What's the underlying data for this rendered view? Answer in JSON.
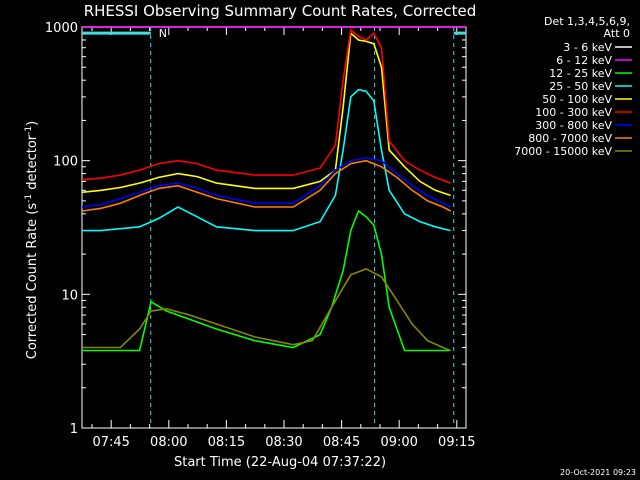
{
  "chart_data": {
    "type": "line",
    "title": "RHESSI Observing Summary Count Rates, Corrected",
    "ylabel": "Corrected Count Rate (s⁻¹ detector⁻¹)",
    "xlabel": "Start Time (22-Aug-04 07:37:22)",
    "x_unit": "minutes since 07:37:22",
    "xlim": [
      0,
      100
    ],
    "ylim": [
      1,
      1000
    ],
    "y_scale": "log",
    "y_ticks": [
      {
        "value": 1,
        "label": "1"
      },
      {
        "value": 10,
        "label": "10"
      },
      {
        "value": 100,
        "label": "100"
      },
      {
        "value": 1000,
        "label": "1000"
      }
    ],
    "x_ticks": [
      {
        "value": 7.6,
        "label": "07:45"
      },
      {
        "value": 22.6,
        "label": "08:00"
      },
      {
        "value": 37.6,
        "label": "08:15"
      },
      {
        "value": 52.6,
        "label": "08:30"
      },
      {
        "value": 67.6,
        "label": "08:45"
      },
      {
        "value": 82.6,
        "label": "09:00"
      },
      {
        "value": 97.6,
        "label": "09:15"
      }
    ],
    "legend_header": [
      "Det 1,3,4,5,6,9,",
      "Att 0"
    ],
    "legend_position": "right",
    "night_markers": [
      17.9,
      76.2,
      96.8
    ],
    "night_marker_label": "N",
    "attenuator_flag_value": 900,
    "series": [
      {
        "name": "3 - 6 keV",
        "color": "#ffffff",
        "x": [
          0,
          20,
          35,
          50,
          62,
          67,
          70,
          73,
          76,
          80,
          85,
          100
        ],
        "y": [
          1000,
          1000,
          1000,
          1000,
          1000,
          1000,
          1000,
          1000,
          1000,
          1000,
          1000,
          1000
        ]
      },
      {
        "name": "6 - 12 keV",
        "color": "#ff00ff",
        "x": [
          0,
          10,
          17,
          25,
          35,
          50,
          62,
          67,
          70,
          73,
          76,
          80,
          85,
          100
        ],
        "y": [
          1000,
          1000,
          1000,
          1000,
          1000,
          1000,
          1000,
          1000,
          1000,
          1000,
          1000,
          1000,
          1000,
          1000
        ]
      },
      {
        "name": "12 - 25 keV",
        "color": "#00ff00",
        "x": [
          0,
          10,
          15,
          18,
          22,
          28,
          35,
          45,
          55,
          62,
          65,
          68,
          70,
          72,
          74,
          76,
          78,
          80,
          84,
          88,
          92,
          96
        ],
        "y": [
          3.8,
          3.8,
          3.8,
          8.8,
          7.5,
          6.5,
          5.5,
          4.5,
          4.0,
          5.0,
          8.0,
          15.0,
          30.0,
          42.0,
          38.0,
          33.0,
          20.0,
          8.0,
          3.8,
          3.8,
          3.8,
          3.8
        ]
      },
      {
        "name": "25 - 50 keV",
        "color": "#00ffff",
        "x": [
          0,
          5,
          10,
          15,
          20,
          25,
          30,
          35,
          45,
          55,
          62,
          66,
          68,
          70,
          72,
          74,
          76,
          78,
          80,
          84,
          88,
          92,
          96
        ],
        "y": [
          30,
          30,
          31,
          32,
          37,
          45,
          38,
          32,
          30,
          30,
          35,
          55,
          120,
          300,
          340,
          330,
          280,
          120,
          60,
          40,
          35,
          32,
          30
        ]
      },
      {
        "name": "50 - 100 keV",
        "color": "#ffff00",
        "x": [
          0,
          5,
          10,
          15,
          20,
          25,
          30,
          35,
          45,
          55,
          62,
          66,
          68,
          70,
          72,
          74,
          76,
          78,
          80,
          84,
          88,
          92,
          96
        ],
        "y": [
          58,
          60,
          63,
          68,
          75,
          80,
          76,
          68,
          62,
          62,
          70,
          85,
          250,
          900,
          800,
          780,
          750,
          500,
          120,
          90,
          70,
          60,
          55
        ]
      },
      {
        "name": "100 - 300 keV",
        "color": "#ff0000",
        "x": [
          0,
          5,
          10,
          15,
          20,
          25,
          30,
          35,
          45,
          55,
          62,
          66,
          68,
          70,
          72,
          74,
          76,
          78,
          80,
          84,
          88,
          92,
          96
        ],
        "y": [
          72,
          74,
          78,
          85,
          95,
          100,
          95,
          85,
          78,
          78,
          88,
          130,
          400,
          950,
          850,
          800,
          900,
          700,
          140,
          100,
          85,
          75,
          68
        ]
      },
      {
        "name": "300 - 800 keV",
        "color": "#0000ff",
        "x": [
          0,
          5,
          10,
          15,
          20,
          25,
          30,
          35,
          45,
          55,
          62,
          66,
          70,
          74,
          78,
          82,
          86,
          90,
          94,
          96
        ],
        "y": [
          45,
          47,
          52,
          58,
          65,
          68,
          62,
          55,
          48,
          48,
          65,
          85,
          100,
          105,
          100,
          80,
          65,
          55,
          48,
          45
        ]
      },
      {
        "name": "800 - 7000 keV",
        "color": "#ff8000",
        "x": [
          0,
          5,
          10,
          15,
          20,
          25,
          30,
          35,
          45,
          55,
          62,
          66,
          70,
          74,
          78,
          82,
          86,
          90,
          94,
          96
        ],
        "y": [
          42,
          44,
          48,
          55,
          62,
          65,
          58,
          52,
          45,
          45,
          60,
          80,
          95,
          100,
          90,
          75,
          60,
          50,
          45,
          42
        ]
      },
      {
        "name": "7000 - 15000 keV",
        "color": "#888800",
        "x": [
          0,
          10,
          15,
          18,
          22,
          28,
          35,
          45,
          55,
          60,
          65,
          70,
          74,
          78,
          82,
          86,
          90,
          94,
          96
        ],
        "y": [
          4.0,
          4.0,
          5.5,
          7.5,
          7.8,
          7.0,
          6.0,
          4.8,
          4.2,
          4.5,
          8.0,
          14.0,
          15.5,
          13.5,
          9.0,
          6.0,
          4.5,
          4.0,
          3.8
        ]
      }
    ]
  },
  "timestamp": "20-Oct-2021 09:23"
}
